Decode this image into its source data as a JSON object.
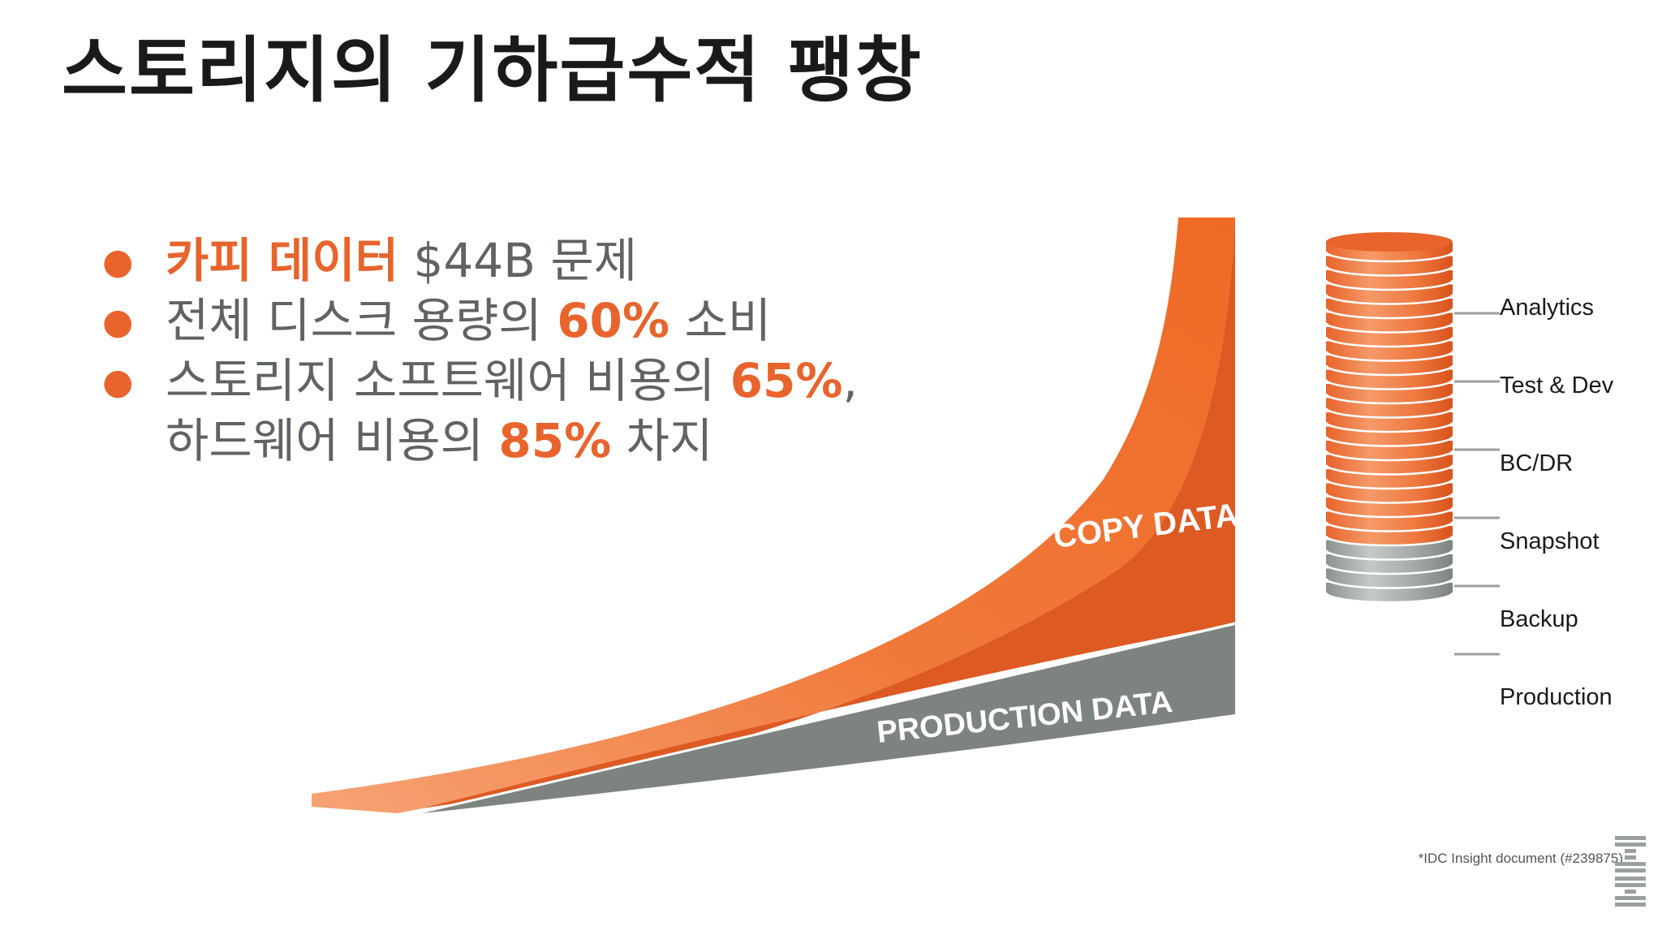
{
  "slide": {
    "title": "스토리지의 기하급수적 팽창",
    "bullets": [
      {
        "parts": [
          {
            "text": "카피 데이터",
            "highlight": true
          },
          {
            "text": " $44B 문제",
            "highlight": false
          }
        ]
      },
      {
        "parts": [
          {
            "text": "전체 디스크 용량의 ",
            "highlight": false
          },
          {
            "text": "60%",
            "highlight": true
          },
          {
            "text": " 소비",
            "highlight": false
          }
        ]
      },
      {
        "parts": [
          {
            "text": "스토리지 소프트웨어 비용의 ",
            "highlight": false
          },
          {
            "text": "65%",
            "highlight": true
          },
          {
            "text": ",",
            "highlight": false
          }
        ]
      },
      {
        "parts": [
          {
            "text": "하드웨어 비용의 ",
            "highlight": false
          },
          {
            "text": "85%",
            "highlight": true
          },
          {
            "text": " 차지",
            "highlight": false
          }
        ],
        "continuation": true
      }
    ]
  },
  "diagram": {
    "copy_label": "COPY DATA",
    "production_label": "PRODUCTION DATA",
    "cylinder_labels": [
      "Analytics",
      "Test & Dev",
      "BC/DR",
      "Snapshot",
      "Backup",
      "Production"
    ]
  },
  "colors": {
    "accent": "#e8642c",
    "orange_light": "#f0793a",
    "orange_dark": "#d9521c",
    "gray": "#7d8480",
    "gray_light": "#aab0b0",
    "text": "#5f6366",
    "title": "#1a1a1a"
  },
  "footer": {
    "source": "*IDC Insight document (#239875)",
    "logo_icon": "ibm-logo-icon"
  }
}
